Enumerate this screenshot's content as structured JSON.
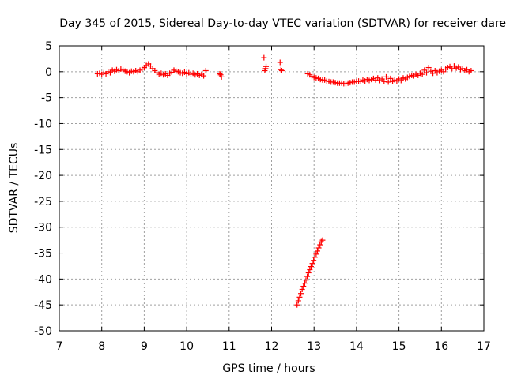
{
  "chart_data": {
    "type": "scatter",
    "title": "Day 345 of 2015, Sidereal Day-to-day VTEC variation (SDTVAR) for receiver dare",
    "xlabel": "GPS time / hours",
    "ylabel": "SDTVAR / TECUs",
    "xlim": [
      7,
      17
    ],
    "ylim": [
      -50,
      5
    ],
    "xticks": [
      "7",
      "8",
      "9",
      "10",
      "11",
      "12",
      "13",
      "14",
      "15",
      "16",
      "17"
    ],
    "yticks": [
      "5",
      "0",
      "-5",
      "-10",
      "-15",
      "-20",
      "-25",
      "-30",
      "-35",
      "-40",
      "-45",
      "-50"
    ],
    "grid": true,
    "marker": "plus",
    "series": [
      {
        "color": "#ff0000",
        "points": [
          [
            7.9,
            -0.4
          ],
          [
            7.95,
            -0.3
          ],
          [
            8.0,
            -0.5
          ],
          [
            8.05,
            -0.2
          ],
          [
            8.1,
            -0.4
          ],
          [
            8.15,
            0.0
          ],
          [
            8.2,
            -0.2
          ],
          [
            8.25,
            0.3
          ],
          [
            8.3,
            0.1
          ],
          [
            8.35,
            0.4
          ],
          [
            8.4,
            0.2
          ],
          [
            8.45,
            0.5
          ],
          [
            8.5,
            0.3
          ],
          [
            8.55,
            0.1
          ],
          [
            8.6,
            0.0
          ],
          [
            8.65,
            -0.2
          ],
          [
            8.7,
            0.1
          ],
          [
            8.75,
            0.0
          ],
          [
            8.8,
            0.2
          ],
          [
            8.85,
            0.0
          ],
          [
            8.9,
            0.3
          ],
          [
            8.95,
            0.5
          ],
          [
            9.0,
            0.8
          ],
          [
            9.05,
            1.2
          ],
          [
            9.1,
            1.5
          ],
          [
            9.15,
            1.1
          ],
          [
            9.2,
            0.6
          ],
          [
            9.25,
            0.2
          ],
          [
            9.3,
            -0.2
          ],
          [
            9.35,
            -0.5
          ],
          [
            9.4,
            -0.3
          ],
          [
            9.45,
            -0.6
          ],
          [
            9.5,
            -0.4
          ],
          [
            9.55,
            -0.7
          ],
          [
            9.6,
            -0.3
          ],
          [
            9.65,
            -0.1
          ],
          [
            9.7,
            0.3
          ],
          [
            9.75,
            0.1
          ],
          [
            9.8,
            0.0
          ],
          [
            9.85,
            -0.2
          ],
          [
            9.9,
            -0.3
          ],
          [
            9.95,
            -0.1
          ],
          [
            10.0,
            -0.4
          ],
          [
            10.05,
            -0.2
          ],
          [
            10.1,
            -0.5
          ],
          [
            10.15,
            -0.3
          ],
          [
            10.2,
            -0.6
          ],
          [
            10.25,
            -0.4
          ],
          [
            10.3,
            -0.7
          ],
          [
            10.35,
            -0.5
          ],
          [
            10.4,
            -0.8
          ],
          [
            10.45,
            0.2
          ],
          [
            10.78,
            -0.4
          ],
          [
            10.8,
            -0.6
          ],
          [
            10.82,
            -1.0
          ],
          [
            11.82,
            2.7
          ],
          [
            11.84,
            0.2
          ],
          [
            11.86,
            0.6
          ],
          [
            11.87,
            1.0
          ],
          [
            12.2,
            1.8
          ],
          [
            12.22,
            0.4
          ],
          [
            12.24,
            0.2
          ],
          [
            12.85,
            -0.4
          ],
          [
            12.9,
            -0.6
          ],
          [
            12.95,
            -0.9
          ],
          [
            13.0,
            -1.1
          ],
          [
            13.05,
            -1.2
          ],
          [
            13.1,
            -1.3
          ],
          [
            13.15,
            -1.5
          ],
          [
            13.2,
            -1.6
          ],
          [
            13.25,
            -1.6
          ],
          [
            13.3,
            -1.8
          ],
          [
            13.35,
            -1.9
          ],
          [
            13.4,
            -2.0
          ],
          [
            13.45,
            -2.0
          ],
          [
            13.5,
            -2.1
          ],
          [
            13.55,
            -2.2
          ],
          [
            13.6,
            -2.2
          ],
          [
            13.65,
            -2.2
          ],
          [
            13.7,
            -2.3
          ],
          [
            13.75,
            -2.3
          ],
          [
            13.8,
            -2.2
          ],
          [
            13.85,
            -2.1
          ],
          [
            13.9,
            -2.0
          ],
          [
            13.95,
            -2.0
          ],
          [
            14.0,
            -1.9
          ],
          [
            14.05,
            -1.8
          ],
          [
            14.1,
            -1.9
          ],
          [
            14.15,
            -1.6
          ],
          [
            14.2,
            -1.8
          ],
          [
            14.25,
            -1.5
          ],
          [
            14.3,
            -1.7
          ],
          [
            14.35,
            -1.5
          ],
          [
            14.4,
            -1.3
          ],
          [
            14.45,
            -1.6
          ],
          [
            14.5,
            -1.2
          ],
          [
            14.55,
            -1.7
          ],
          [
            14.6,
            -1.4
          ],
          [
            14.65,
            -1.9
          ],
          [
            14.7,
            -1.0
          ],
          [
            14.75,
            -2.0
          ],
          [
            14.8,
            -1.3
          ],
          [
            14.85,
            -1.9
          ],
          [
            14.9,
            -1.6
          ],
          [
            14.95,
            -1.8
          ],
          [
            15.0,
            -1.4
          ],
          [
            15.05,
            -1.7
          ],
          [
            15.1,
            -1.2
          ],
          [
            15.15,
            -1.4
          ],
          [
            15.2,
            -1.1
          ],
          [
            15.25,
            -0.9
          ],
          [
            15.3,
            -0.7
          ],
          [
            15.35,
            -0.8
          ],
          [
            15.4,
            -0.5
          ],
          [
            15.45,
            -0.7
          ],
          [
            15.5,
            -0.3
          ],
          [
            15.55,
            -0.5
          ],
          [
            15.6,
            0.3
          ],
          [
            15.65,
            -0.2
          ],
          [
            15.7,
            0.8
          ],
          [
            15.75,
            0.1
          ],
          [
            15.8,
            -0.3
          ],
          [
            15.85,
            0.2
          ],
          [
            15.9,
            -0.2
          ],
          [
            15.95,
            0.1
          ],
          [
            16.0,
            0.3
          ],
          [
            16.05,
            0.0
          ],
          [
            16.1,
            0.5
          ],
          [
            16.15,
            0.8
          ],
          [
            16.2,
            1.0
          ],
          [
            16.25,
            0.6
          ],
          [
            16.3,
            1.1
          ],
          [
            16.35,
            0.7
          ],
          [
            16.4,
            0.9
          ],
          [
            16.45,
            0.4
          ],
          [
            16.5,
            0.6
          ],
          [
            16.55,
            0.2
          ],
          [
            16.6,
            0.4
          ],
          [
            16.65,
            0.0
          ],
          [
            16.7,
            0.2
          ],
          [
            12.6,
            -45.0
          ],
          [
            12.63,
            -44.2
          ],
          [
            12.66,
            -43.5
          ],
          [
            12.69,
            -42.8
          ],
          [
            12.72,
            -42.0
          ],
          [
            12.75,
            -41.4
          ],
          [
            12.78,
            -40.8
          ],
          [
            12.81,
            -40.2
          ],
          [
            12.84,
            -39.5
          ],
          [
            12.87,
            -38.8
          ],
          [
            12.9,
            -38.2
          ],
          [
            12.93,
            -37.6
          ],
          [
            12.96,
            -37.0
          ],
          [
            12.99,
            -36.4
          ],
          [
            13.02,
            -35.8
          ],
          [
            13.05,
            -35.2
          ],
          [
            13.08,
            -34.6
          ],
          [
            13.11,
            -34.0
          ],
          [
            13.14,
            -33.4
          ],
          [
            13.17,
            -32.8
          ],
          [
            13.2,
            -32.5
          ]
        ]
      }
    ]
  }
}
